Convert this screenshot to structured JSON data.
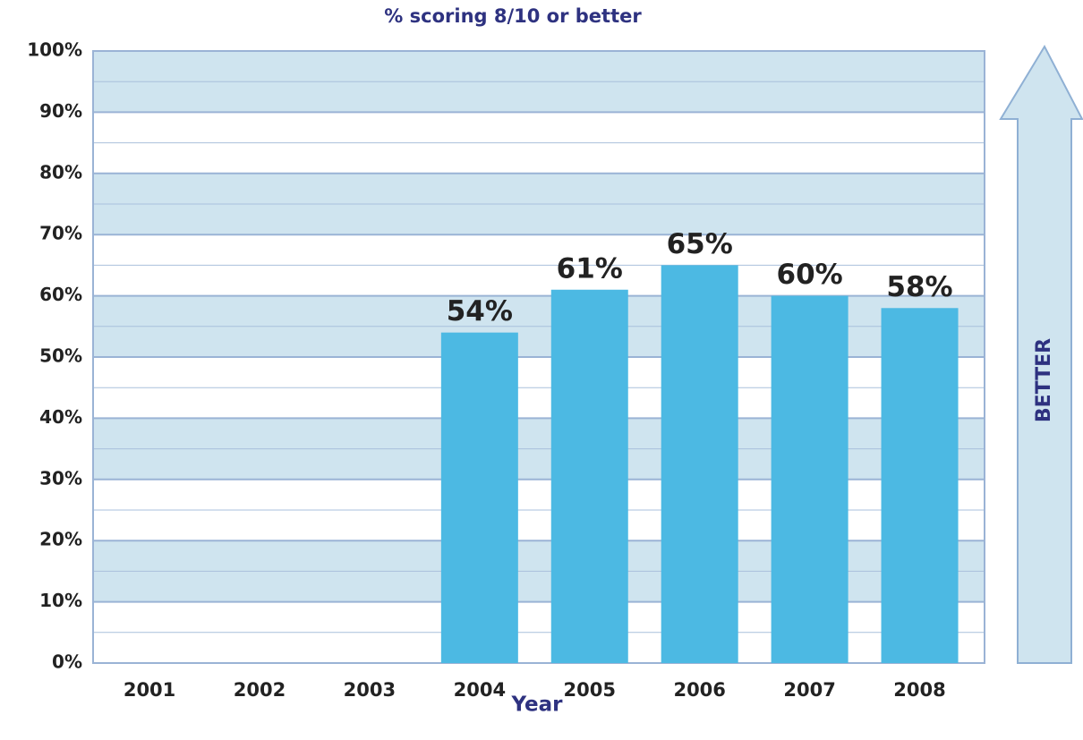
{
  "chart_data": {
    "type": "bar",
    "title": "% scoring 8/10 or better",
    "x_label": "Year",
    "annotation": "BETTER",
    "categories": [
      "2001",
      "2002",
      "2003",
      "2004",
      "2005",
      "2006",
      "2007",
      "2008"
    ],
    "values": [
      null,
      null,
      null,
      54,
      61,
      65,
      60,
      58
    ],
    "value_labels": [
      null,
      null,
      null,
      "54%",
      "61%",
      "65%",
      "60%",
      "58%"
    ],
    "color": "#4cb9e3",
    "ylim": [
      0,
      100
    ],
    "yticks": [
      {
        "value": 0,
        "label": "0%"
      },
      {
        "value": 10,
        "label": "10%"
      },
      {
        "value": 20,
        "label": "20%"
      },
      {
        "value": 30,
        "label": "30%"
      },
      {
        "value": 40,
        "label": "40%"
      },
      {
        "value": 50,
        "label": "50%"
      },
      {
        "value": 60,
        "label": "60%"
      },
      {
        "value": 70,
        "label": "70%"
      },
      {
        "value": 80,
        "label": "80%"
      },
      {
        "value": 90,
        "label": "90%"
      },
      {
        "value": 100,
        "label": "100%"
      }
    ],
    "grid": true,
    "banded": true
  }
}
